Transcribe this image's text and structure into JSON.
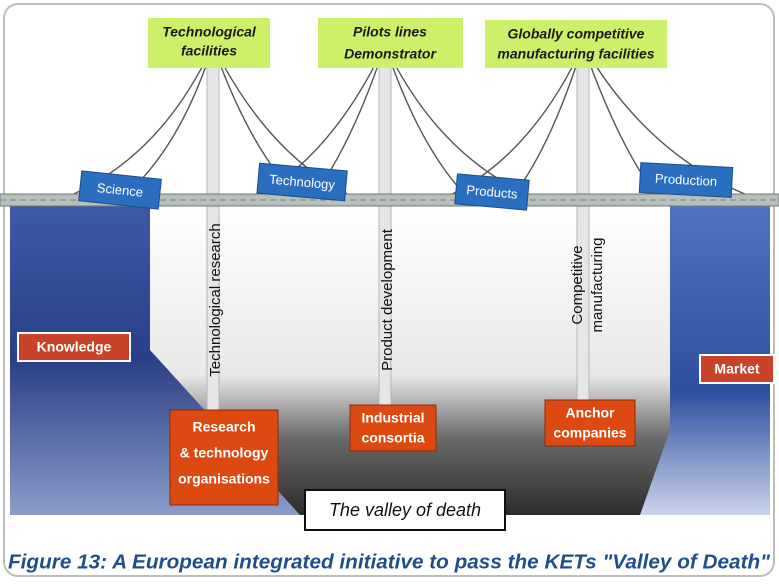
{
  "facilities": [
    {
      "lines": [
        "Technological",
        "facilities"
      ]
    },
    {
      "lines": [
        "Pilots lines",
        "Demonstrator"
      ]
    },
    {
      "lines": [
        "Globally competitive",
        "manufacturing facilities"
      ]
    }
  ],
  "bridge_signs": [
    "Science",
    "Technology",
    "Products",
    "Production"
  ],
  "pillars": [
    {
      "lines": [
        "Technological research"
      ]
    },
    {
      "lines": [
        "Product development"
      ]
    },
    {
      "lines": [
        "Competitive",
        "manufacturing"
      ]
    }
  ],
  "ends": [
    "Knowledge",
    "Market"
  ],
  "actors": [
    {
      "lines": [
        "Research",
        "& technology",
        "organisations"
      ]
    },
    {
      "lines": [
        "Industrial",
        "consortia"
      ]
    },
    {
      "lines": [
        "Anchor",
        "companies"
      ]
    }
  ],
  "valley_label": "The valley of death",
  "caption": "Figure 13: A European integrated initiative to pass the KETs \"Valley of Death\""
}
